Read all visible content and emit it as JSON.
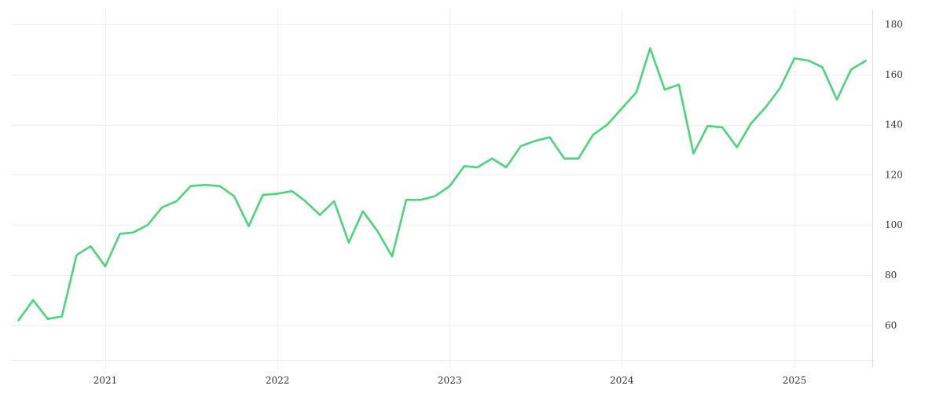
{
  "chart_data": {
    "type": "line",
    "title": "",
    "xlabel": "",
    "ylabel": "",
    "grid": true,
    "legend": "none",
    "line_color": "#4cd47b",
    "grid_color": "#eeeeee",
    "axis_color": "#dddddd",
    "x_ticks": [
      "2021",
      "2022",
      "2023",
      "2024",
      "2025"
    ],
    "y_ticks": [
      60,
      80,
      100,
      120,
      140,
      160,
      180
    ],
    "ylim": [
      43,
      186
    ],
    "xlim": [
      "2020-06-15",
      "2025-06-15"
    ],
    "series": [
      {
        "x": [
          "2020-07-01",
          "2020-08-01",
          "2020-09-01",
          "2020-10-01",
          "2020-11-01",
          "2020-12-01",
          "2021-01-01",
          "2021-02-01",
          "2021-03-01",
          "2021-04-01",
          "2021-05-01",
          "2021-06-01",
          "2021-07-01",
          "2021-08-01",
          "2021-09-01",
          "2021-10-01",
          "2021-11-01",
          "2021-12-01",
          "2022-01-01",
          "2022-02-01",
          "2022-03-01",
          "2022-04-01",
          "2022-05-01",
          "2022-06-01",
          "2022-07-01",
          "2022-08-01",
          "2022-09-01",
          "2022-10-01",
          "2022-11-01",
          "2022-12-01",
          "2023-01-01",
          "2023-02-01",
          "2023-03-01",
          "2023-04-01",
          "2023-05-01",
          "2023-06-01",
          "2023-07-01",
          "2023-08-01",
          "2023-09-01",
          "2023-10-01",
          "2023-11-01",
          "2023-12-01",
          "2024-01-01",
          "2024-02-01",
          "2024-03-01",
          "2024-04-01",
          "2024-05-01",
          "2024-06-01",
          "2024-07-01",
          "2024-08-01",
          "2024-09-01",
          "2024-10-01",
          "2024-11-01",
          "2024-12-01",
          "2025-01-01",
          "2025-02-01",
          "2025-03-01",
          "2025-04-01",
          "2025-05-01",
          "2025-06-01"
        ],
        "values": [
          62,
          70,
          62.5,
          63.5,
          88,
          91.5,
          83.5,
          96.5,
          97,
          100,
          107,
          109.5,
          115.5,
          116,
          115.5,
          111.5,
          99.5,
          112,
          112.5,
          113.5,
          109.5,
          104,
          109.5,
          93,
          105.5,
          97.5,
          87.5,
          110,
          110,
          111.5,
          115.5,
          123.5,
          123,
          126.5,
          123,
          131.5,
          133.5,
          135,
          126.5,
          126.5,
          136,
          140,
          146.5,
          153,
          170.5,
          154,
          156,
          128.5,
          139.5,
          139,
          131,
          140.5,
          147,
          154.5,
          166.5,
          165.5,
          163,
          150,
          162,
          165.5
        ]
      }
    ]
  }
}
